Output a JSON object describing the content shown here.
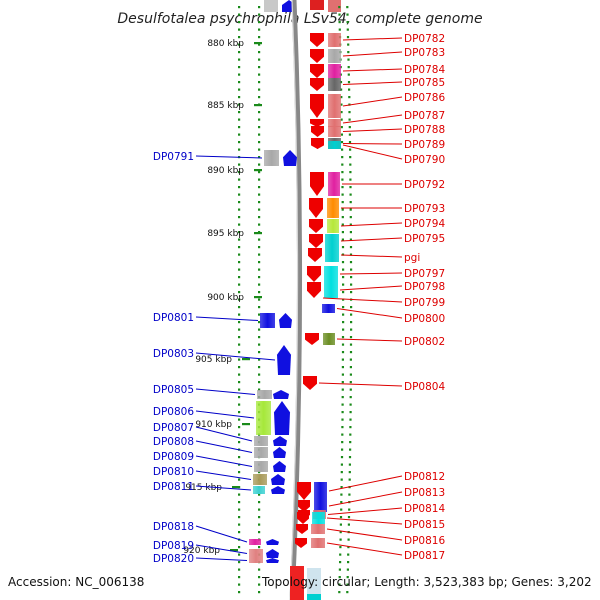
{
  "title": "Desulfotalea psychrophila LSv54, complete genome",
  "footer": {
    "accession": "Accession: NC_006138",
    "topology": "Topology: circular; Length: 3,523,383 bp; Genes: 3,202"
  },
  "colors": {
    "forward_label": "#0000c8",
    "reverse_label": "#dd0000",
    "backbone": "#888888",
    "ruler_tick": "#1a8a1a"
  },
  "ruler": [
    {
      "label": "880 kbp"
    },
    {
      "label": "885 kbp"
    },
    {
      "label": "890 kbp"
    },
    {
      "label": "895 kbp"
    },
    {
      "label": "900 kbp"
    },
    {
      "label": "905 kbp"
    },
    {
      "label": "910 kbp"
    },
    {
      "label": "915 kbp"
    },
    {
      "label": "920 kbp"
    }
  ],
  "genes_left": [
    {
      "name": "DP0791",
      "arrow_color": "#1010e0",
      "box_color": "#a8a8a8"
    },
    {
      "name": "DP0801",
      "arrow_color": "#1010e0",
      "box_color": "#1010e0"
    },
    {
      "name": "DP0803",
      "arrow_color": "#1010e0",
      "box_color": "none"
    },
    {
      "name": "DP0805",
      "arrow_color": "#1010e0",
      "box_color": "#a8a8a8"
    },
    {
      "name": "DP0806",
      "arrow_color": "#1010e0",
      "box_color": "#a6e83a"
    },
    {
      "name": "DP0807",
      "arrow_color": "#1010e0",
      "box_color": "#a8a8a8"
    },
    {
      "name": "DP0808",
      "arrow_color": "#1010e0",
      "box_color": "#a8a8a8"
    },
    {
      "name": "DP0809",
      "arrow_color": "#1010e0",
      "box_color": "#a8a8a8"
    },
    {
      "name": "DP0810",
      "arrow_color": "#1010e0",
      "box_color": "#a89a5a"
    },
    {
      "name": "DP0811",
      "arrow_color": "#1010e0",
      "box_color": "#3ad0d0"
    },
    {
      "name": "DP0818",
      "arrow_color": "#1010e0",
      "box_color": "#e020a0"
    },
    {
      "name": "DP0819",
      "arrow_color": "#1010e0",
      "box_color": "#e08080"
    },
    {
      "name": "DP0820",
      "arrow_color": "#1010e0",
      "box_color": "#e08080"
    }
  ],
  "genes_right": [
    {
      "name": "DP0782",
      "arrow_color": "#ee0000",
      "box_color": "#e07070"
    },
    {
      "name": "DP0783",
      "arrow_color": "#ee0000",
      "box_color": "#a8a8a8"
    },
    {
      "name": "DP0784",
      "arrow_color": "#ee0000",
      "box_color": "#e020a0"
    },
    {
      "name": "DP0785",
      "arrow_color": "#ee0000",
      "box_color": "#666666"
    },
    {
      "name": "DP0786",
      "arrow_color": "#ee0000",
      "box_color": "#e07070"
    },
    {
      "name": "DP0787",
      "arrow_color": "#ee0000",
      "box_color": "#e07070"
    },
    {
      "name": "DP0788",
      "arrow_color": "#ee0000",
      "box_color": "#e07070"
    },
    {
      "name": "DP0789",
      "arrow_color": "#ee0000",
      "box_color": "#666666"
    },
    {
      "name": "DP0790",
      "arrow_color": "#ee0000",
      "box_color": "#00d0d0"
    },
    {
      "name": "DP0792",
      "arrow_color": "#ee0000",
      "box_color": "#e020a0"
    },
    {
      "name": "DP0793",
      "arrow_color": "#ee0000",
      "box_color": "#ff8c00"
    },
    {
      "name": "DP0794",
      "arrow_color": "#ee0000",
      "box_color": "#b6e83a"
    },
    {
      "name": "DP0795",
      "arrow_color": "#ee0000",
      "box_color": "#00d0d0"
    },
    {
      "name": "pgi",
      "arrow_color": "#ee0000",
      "box_color": "#00d0d0"
    },
    {
      "name": "DP0797",
      "arrow_color": "#ee0000",
      "box_color": "#00e0e0"
    },
    {
      "name": "DP0798",
      "arrow_color": "#ee0000",
      "box_color": "#00e0e0"
    },
    {
      "name": "DP0799",
      "arrow_color": "#ee0000",
      "box_color": "none"
    },
    {
      "name": "DP0800",
      "arrow_color": "#1010e0",
      "box_color": "#1010e0"
    },
    {
      "name": "DP0802",
      "arrow_color": "#ee0000",
      "box_color": "#6b8e23"
    },
    {
      "name": "DP0804",
      "arrow_color": "#ee0000",
      "box_color": "none"
    },
    {
      "name": "DP0812",
      "arrow_color": "#ee0000",
      "box_color": "#1010e0"
    },
    {
      "name": "DP0813",
      "arrow_color": "#ee0000",
      "box_color": "#1010e0"
    },
    {
      "name": "DP0814",
      "arrow_color": "#ee0000",
      "box_color": "#e07070"
    },
    {
      "name": "DP0815",
      "arrow_color": "#ee0000",
      "box_color": "#00e0e0"
    },
    {
      "name": "DP0816",
      "arrow_color": "#ee0000",
      "box_color": "#e07070"
    },
    {
      "name": "DP0817",
      "arrow_color": "#ee0000",
      "box_color": "#e07070"
    }
  ]
}
